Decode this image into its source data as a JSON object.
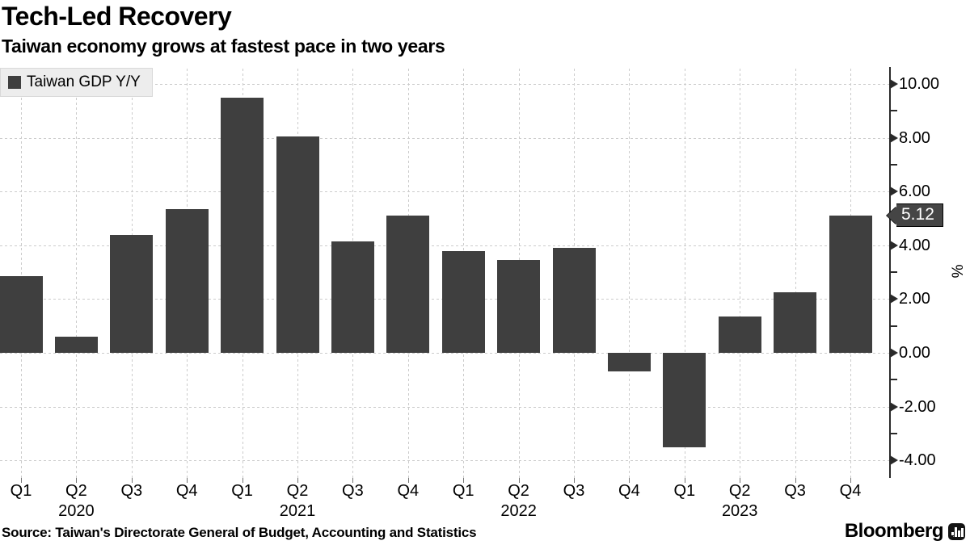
{
  "header": {
    "title": "Tech-Led Recovery",
    "subtitle": "Taiwan economy grows at fastest pace in two years"
  },
  "legend": {
    "label": "Taiwan GDP Y/Y"
  },
  "footer": {
    "source": "Source: Taiwan's Directorate General of Budget, Accounting and Statistics",
    "brand": "Bloomberg"
  },
  "chart_data": {
    "type": "bar",
    "title": "Tech-Led Recovery",
    "subtitle": "Taiwan economy grows at fastest pace in two years",
    "categories": [
      "Q1",
      "Q2",
      "Q3",
      "Q4",
      "Q1",
      "Q2",
      "Q3",
      "Q4",
      "Q1",
      "Q2",
      "Q3",
      "Q4",
      "Q1",
      "Q2",
      "Q3",
      "Q4"
    ],
    "category_years": [
      2020,
      2020,
      2020,
      2020,
      2021,
      2021,
      2021,
      2021,
      2022,
      2022,
      2022,
      2022,
      2023,
      2023,
      2023,
      2023
    ],
    "series": [
      {
        "name": "Taiwan GDP Y/Y",
        "values": [
          2.85,
          0.6,
          4.4,
          5.35,
          9.5,
          8.05,
          4.15,
          5.1,
          3.8,
          3.45,
          3.9,
          -0.7,
          -3.5,
          1.35,
          2.25,
          5.12
        ]
      }
    ],
    "year_labels": [
      {
        "label": "2020",
        "tick_index": 1
      },
      {
        "label": "2021",
        "tick_index": 5
      },
      {
        "label": "2022",
        "tick_index": 9
      },
      {
        "label": "2023",
        "tick_index": 13
      }
    ],
    "xlabel": "",
    "ylabel": "%",
    "ylim": [
      -4.65,
      10.57
    ],
    "y_axis": {
      "major_ticks": [
        {
          "value": 10,
          "label": "10.00"
        },
        {
          "value": 8,
          "label": "8.00"
        },
        {
          "value": 6,
          "label": "6.00"
        },
        {
          "value": 4,
          "label": "4.00"
        },
        {
          "value": 2,
          "label": "2.00"
        },
        {
          "value": 0,
          "label": "0.00"
        },
        {
          "value": -2,
          "label": "-2.00"
        },
        {
          "value": -4,
          "label": "-4.00"
        }
      ],
      "minor_ticks": [
        9,
        7,
        5,
        3,
        1,
        -1,
        -3
      ],
      "side": "right"
    },
    "grid": "dashed-both",
    "legend_position": "top-left",
    "callout": {
      "label": "5.12",
      "value": 5.12
    },
    "colors": {
      "bar": "#3f3f3f",
      "grid": "#cbcbcb",
      "axis": "#2a2a2a",
      "callout_bg": "#454545",
      "callout_text": "#ffffff",
      "legend_bg": "#ededed"
    }
  }
}
